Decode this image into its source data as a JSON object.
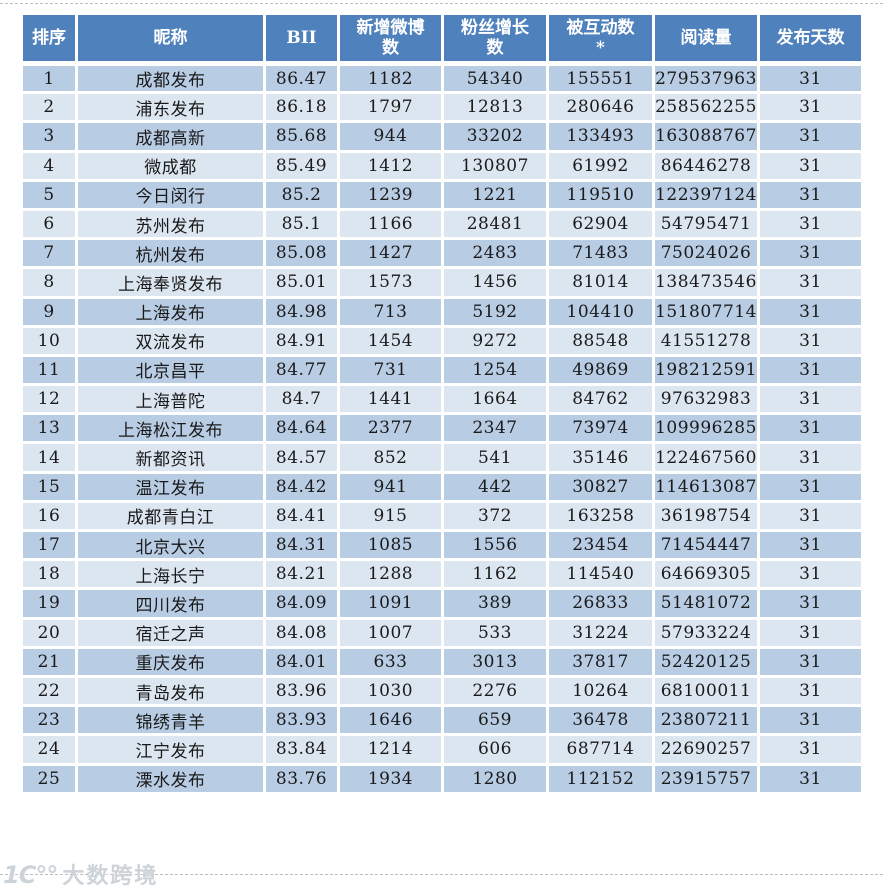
{
  "colors": {
    "header_bg": "#4F81BD",
    "header_text": "#FFFFFF",
    "row_odd": "#B8CCE4",
    "row_even": "#DCE6F1",
    "cell_text": "#1A1A1A"
  },
  "watermark": {
    "logo": "1C°°",
    "text": "大数跨境"
  },
  "table": {
    "columns": [
      {
        "label": "排序"
      },
      {
        "label": "昵称"
      },
      {
        "label": "BII"
      },
      {
        "label": "新增微博\n数"
      },
      {
        "label": "粉丝增长\n数"
      },
      {
        "label": "被互动数\n*"
      },
      {
        "label": "阅读量"
      },
      {
        "label": "发布天数"
      }
    ],
    "rows": [
      [
        "1",
        "成都发布",
        "86.47",
        "1182",
        "54340",
        "155551",
        "279537963",
        "31"
      ],
      [
        "2",
        "浦东发布",
        "86.18",
        "1797",
        "12813",
        "280646",
        "258562255",
        "31"
      ],
      [
        "3",
        "成都高新",
        "85.68",
        "944",
        "33202",
        "133493",
        "163088767",
        "31"
      ],
      [
        "4",
        "微成都",
        "85.49",
        "1412",
        "130807",
        "61992",
        "86446278",
        "31"
      ],
      [
        "5",
        "今日闵行",
        "85.2",
        "1239",
        "1221",
        "119510",
        "122397124",
        "31"
      ],
      [
        "6",
        "苏州发布",
        "85.1",
        "1166",
        "28481",
        "62904",
        "54795471",
        "31"
      ],
      [
        "7",
        "杭州发布",
        "85.08",
        "1427",
        "2483",
        "71483",
        "75024026",
        "31"
      ],
      [
        "8",
        "上海奉贤发布",
        "85.01",
        "1573",
        "1456",
        "81014",
        "138473546",
        "31"
      ],
      [
        "9",
        "上海发布",
        "84.98",
        "713",
        "5192",
        "104410",
        "151807714",
        "31"
      ],
      [
        "10",
        "双流发布",
        "84.91",
        "1454",
        "9272",
        "88548",
        "41551278",
        "31"
      ],
      [
        "11",
        "北京昌平",
        "84.77",
        "731",
        "1254",
        "49869",
        "198212591",
        "31"
      ],
      [
        "12",
        "上海普陀",
        "84.7",
        "1441",
        "1664",
        "84762",
        "97632983",
        "31"
      ],
      [
        "13",
        "上海松江发布",
        "84.64",
        "2377",
        "2347",
        "73974",
        "109996285",
        "31"
      ],
      [
        "14",
        "新都资讯",
        "84.57",
        "852",
        "541",
        "35146",
        "122467560",
        "31"
      ],
      [
        "15",
        "温江发布",
        "84.42",
        "941",
        "442",
        "30827",
        "114613087",
        "31"
      ],
      [
        "16",
        "成都青白江",
        "84.41",
        "915",
        "372",
        "163258",
        "36198754",
        "31"
      ],
      [
        "17",
        "北京大兴",
        "84.31",
        "1085",
        "1556",
        "23454",
        "71454447",
        "31"
      ],
      [
        "18",
        "上海长宁",
        "84.21",
        "1288",
        "1162",
        "114540",
        "64669305",
        "31"
      ],
      [
        "19",
        "四川发布",
        "84.09",
        "1091",
        "389",
        "26833",
        "51481072",
        "31"
      ],
      [
        "20",
        "宿迁之声",
        "84.08",
        "1007",
        "533",
        "31224",
        "57933224",
        "31"
      ],
      [
        "21",
        "重庆发布",
        "84.01",
        "633",
        "3013",
        "37817",
        "52420125",
        "31"
      ],
      [
        "22",
        "青岛发布",
        "83.96",
        "1030",
        "2276",
        "10264",
        "68100011",
        "31"
      ],
      [
        "23",
        "锦绣青羊",
        "83.93",
        "1646",
        "659",
        "36478",
        "23807211",
        "31"
      ],
      [
        "24",
        "江宁发布",
        "83.84",
        "1214",
        "606",
        "687714",
        "22690257",
        "31"
      ],
      [
        "25",
        "溧水发布",
        "83.76",
        "1934",
        "1280",
        "112152",
        "23915757",
        "31"
      ]
    ]
  }
}
